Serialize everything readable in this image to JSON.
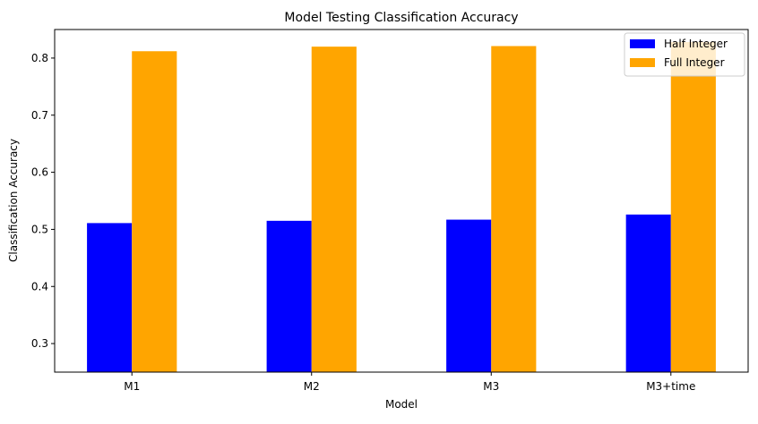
{
  "chart_data": {
    "type": "bar",
    "title": "Model Testing Classification Accuracy",
    "xlabel": "Model",
    "ylabel": "Classification Accuracy",
    "categories": [
      "M1",
      "M2",
      "M3",
      "M3+time"
    ],
    "series": [
      {
        "name": "Half Integer",
        "color": "#0000ff",
        "values": [
          0.511,
          0.515,
          0.517,
          0.526
        ]
      },
      {
        "name": "Full Integer",
        "color": "#ffa500",
        "values": [
          0.812,
          0.82,
          0.821,
          0.828
        ]
      }
    ],
    "ylim": [
      0.25,
      0.85
    ],
    "yticks": [
      0.3,
      0.4,
      0.5,
      0.6,
      0.7,
      0.8
    ],
    "ytick_labels": [
      "0.3",
      "0.4",
      "0.5",
      "0.6",
      "0.7",
      "0.8"
    ],
    "grid": false,
    "legend_position": "top-right"
  }
}
